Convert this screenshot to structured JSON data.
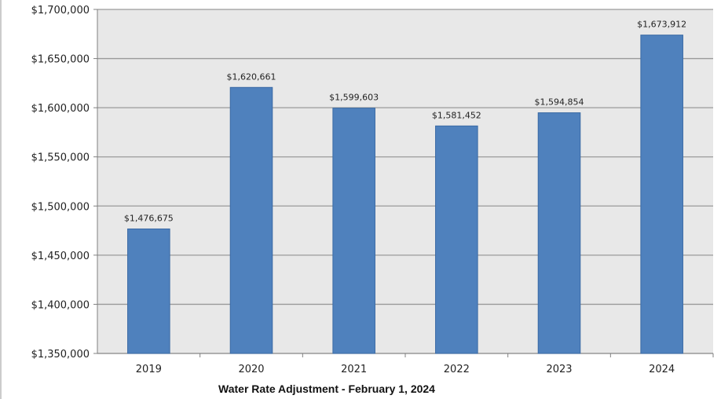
{
  "chart_data": {
    "type": "bar",
    "title": "",
    "xlabel": "Water Rate Adjustment - February 1, 2024",
    "ylabel": "",
    "categories": [
      "2019",
      "2020",
      "2021",
      "2022",
      "2023",
      "2024"
    ],
    "values": [
      1476675,
      1620661,
      1599603,
      1581452,
      1594854,
      1673912
    ],
    "data_labels": [
      "$1,476,675",
      "$1,620,661",
      "$1,599,603",
      "$1,581,452",
      "$1,594,854",
      "$1,673,912"
    ],
    "ylim": [
      1350000,
      1700000
    ],
    "y_ticks": [
      1350000,
      1400000,
      1450000,
      1500000,
      1550000,
      1600000,
      1650000,
      1700000
    ],
    "y_tick_labels": [
      "$1,350,000",
      "$1,400,000",
      "$1,450,000",
      "$1,500,000",
      "$1,550,000",
      "$1,600,000",
      "$1,650,000",
      "$1,700,000"
    ],
    "grid": true,
    "legend": "none",
    "colors": {
      "bar": "#4f81bd",
      "bar_edge": "#3a6aa5",
      "plot_background": "#e8e8e8",
      "grid": "#9a9a9a",
      "axis": "#808080"
    }
  }
}
